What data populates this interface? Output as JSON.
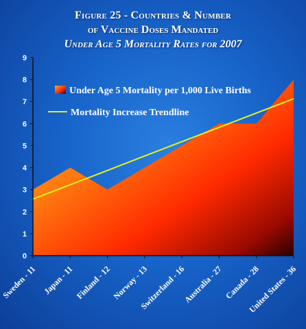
{
  "title_line1": "Figure 25 - Countries & Number",
  "title_line2": "of Vaccine Doses Mandated",
  "subtitle": "Under Age 5 Mortality Rates for 2007",
  "colors": {
    "background": "#1763c9",
    "area_top": "#ffb020",
    "area_mid": "#ff2200",
    "area_dark": "#3a0000",
    "trendline": "#e8f020",
    "axis": "#111111",
    "text": "#ffffff"
  },
  "chart_data": {
    "type": "area",
    "categories": [
      "Sweden - 11",
      "Japan - 11",
      "Finland - 12",
      "Norway - 13",
      "Switzerland - 16",
      "Australia - 27",
      "Canada - 28",
      "United States - 36"
    ],
    "series": [
      {
        "name": "Under Age 5 Mortality per 1,000 Live Births",
        "type": "area",
        "values": [
          3,
          4,
          3,
          4,
          5,
          6,
          6,
          8
        ]
      },
      {
        "name": "Mortality Increase Trendline",
        "type": "line",
        "values": [
          2.57,
          3.22,
          3.87,
          4.53,
          5.18,
          5.83,
          6.48,
          7.13
        ]
      }
    ],
    "ylim": [
      0,
      9
    ],
    "yticks": [
      0,
      1,
      2,
      3,
      4,
      5,
      6,
      7,
      8,
      9
    ],
    "legend_position": "upper-left inside plot"
  }
}
